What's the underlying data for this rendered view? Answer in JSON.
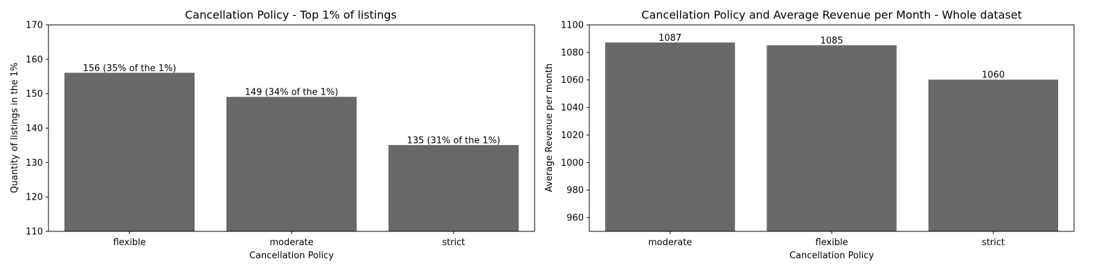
{
  "chart_data": [
    {
      "type": "bar",
      "title": "Cancellation Policy - Top 1% of listings",
      "xlabel": "Cancellation Policy",
      "ylabel": "Quantity of listings in the 1%",
      "categories": [
        "flexible",
        "moderate",
        "strict"
      ],
      "values": [
        156,
        149,
        135
      ],
      "data_labels": [
        "156 (35% of the 1%)",
        "149 (34% of the 1%)",
        "135 (31% of the 1%)"
      ],
      "ylim": [
        110,
        170
      ],
      "yticks": [
        110,
        120,
        130,
        140,
        150,
        160,
        170
      ],
      "bar_color": "#696969",
      "grid": false
    },
    {
      "type": "bar",
      "title": "Cancellation Policy and Average Revenue per Month - Whole dataset",
      "xlabel": "Cancellation Policy",
      "ylabel": "Average Revenue per month",
      "categories": [
        "moderate",
        "flexible",
        "strict"
      ],
      "values": [
        1087,
        1085,
        1060
      ],
      "data_labels": [
        "1087",
        "1085",
        "1060"
      ],
      "ylim": [
        950,
        1100
      ],
      "yticks": [
        960,
        980,
        1000,
        1020,
        1040,
        1060,
        1080,
        1100
      ],
      "bar_color": "#696969",
      "grid": false
    }
  ]
}
